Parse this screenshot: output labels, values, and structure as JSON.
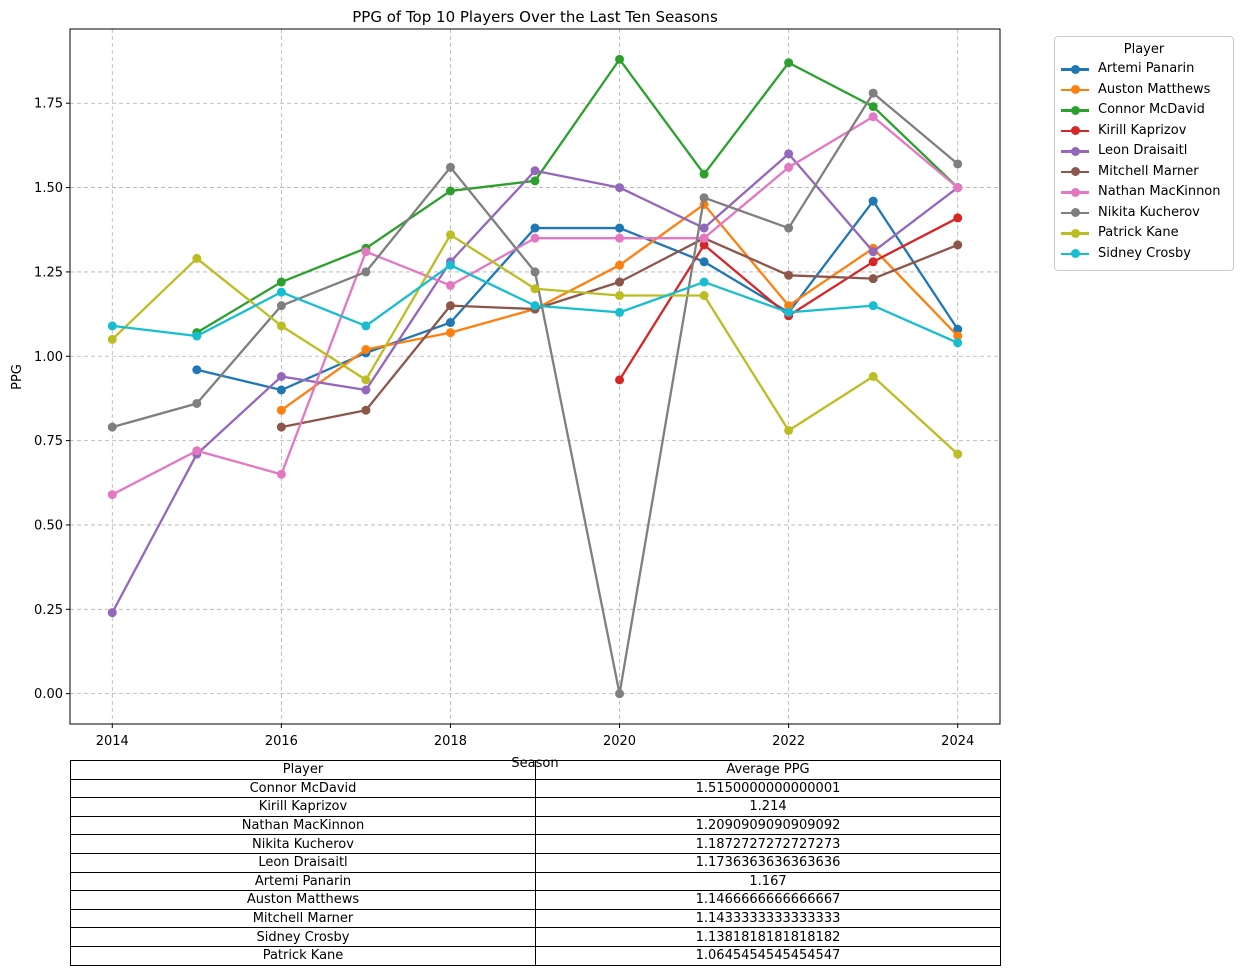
{
  "chart_data": {
    "type": "line",
    "title": "PPG of Top 10 Players Over the Last Ten Seasons",
    "xlabel": "Season",
    "ylabel": "PPG",
    "xlim": [
      2013.5,
      2024.5
    ],
    "ylim": [
      -0.09,
      1.97
    ],
    "xticks": [
      2014,
      2016,
      2018,
      2020,
      2022,
      2024
    ],
    "yticks": [
      0.0,
      0.25,
      0.5,
      0.75,
      1.0,
      1.25,
      1.5,
      1.75
    ],
    "ytick_labels": [
      "0.00",
      "0.25",
      "0.50",
      "0.75",
      "1.00",
      "1.25",
      "1.50",
      "1.75"
    ],
    "grid": true,
    "legend_title": "Player",
    "legend_position": "outside top-right",
    "series": [
      {
        "name": "Artemi Panarin",
        "color": "#1f77b4",
        "points": [
          [
            2015,
            0.96
          ],
          [
            2016,
            0.9
          ],
          [
            2017,
            1.01
          ],
          [
            2018,
            1.1
          ],
          [
            2019,
            1.38
          ],
          [
            2020,
            1.38
          ],
          [
            2021,
            1.28
          ],
          [
            2022,
            1.13
          ],
          [
            2023,
            1.46
          ],
          [
            2024,
            1.08
          ]
        ]
      },
      {
        "name": "Auston Matthews",
        "color": "#ff7f0e",
        "points": [
          [
            2016,
            0.84
          ],
          [
            2017,
            1.02
          ],
          [
            2018,
            1.07
          ],
          [
            2019,
            1.14
          ],
          [
            2020,
            1.27
          ],
          [
            2021,
            1.45
          ],
          [
            2022,
            1.15
          ],
          [
            2023,
            1.32
          ],
          [
            2024,
            1.06
          ]
        ]
      },
      {
        "name": "Connor McDavid",
        "color": "#2ca02c",
        "points": [
          [
            2015,
            1.07
          ],
          [
            2016,
            1.22
          ],
          [
            2017,
            1.32
          ],
          [
            2018,
            1.49
          ],
          [
            2019,
            1.52
          ],
          [
            2020,
            1.88
          ],
          [
            2021,
            1.54
          ],
          [
            2022,
            1.87
          ],
          [
            2023,
            1.74
          ],
          [
            2024,
            1.5
          ]
        ]
      },
      {
        "name": "Kirill Kaprizov",
        "color": "#d62728",
        "points": [
          [
            2020,
            0.93
          ],
          [
            2021,
            1.33
          ],
          [
            2022,
            1.12
          ],
          [
            2023,
            1.28
          ],
          [
            2024,
            1.41
          ]
        ]
      },
      {
        "name": "Leon Draisaitl",
        "color": "#9467bd",
        "points": [
          [
            2014,
            0.24
          ],
          [
            2015,
            0.71
          ],
          [
            2016,
            0.94
          ],
          [
            2017,
            0.9
          ],
          [
            2018,
            1.28
          ],
          [
            2019,
            1.55
          ],
          [
            2020,
            1.5
          ],
          [
            2021,
            1.38
          ],
          [
            2022,
            1.6
          ],
          [
            2023,
            1.31
          ],
          [
            2024,
            1.5
          ]
        ]
      },
      {
        "name": "Mitchell Marner",
        "color": "#8c564b",
        "points": [
          [
            2016,
            0.79
          ],
          [
            2017,
            0.84
          ],
          [
            2018,
            1.15
          ],
          [
            2019,
            1.14
          ],
          [
            2020,
            1.22
          ],
          [
            2021,
            1.35
          ],
          [
            2022,
            1.24
          ],
          [
            2023,
            1.23
          ],
          [
            2024,
            1.33
          ]
        ]
      },
      {
        "name": "Nathan MacKinnon",
        "color": "#e377c2",
        "points": [
          [
            2014,
            0.59
          ],
          [
            2015,
            0.72
          ],
          [
            2016,
            0.65
          ],
          [
            2017,
            1.31
          ],
          [
            2018,
            1.21
          ],
          [
            2019,
            1.35
          ],
          [
            2020,
            1.35
          ],
          [
            2021,
            1.35
          ],
          [
            2022,
            1.56
          ],
          [
            2023,
            1.71
          ],
          [
            2024,
            1.5
          ]
        ]
      },
      {
        "name": "Nikita Kucherov",
        "color": "#7f7f7f",
        "points": [
          [
            2014,
            0.79
          ],
          [
            2015,
            0.86
          ],
          [
            2016,
            1.15
          ],
          [
            2017,
            1.25
          ],
          [
            2018,
            1.56
          ],
          [
            2019,
            1.25
          ],
          [
            2020,
            0.0
          ],
          [
            2021,
            1.47
          ],
          [
            2022,
            1.38
          ],
          [
            2023,
            1.78
          ],
          [
            2024,
            1.57
          ]
        ]
      },
      {
        "name": "Patrick Kane",
        "color": "#bcbd22",
        "points": [
          [
            2014,
            1.05
          ],
          [
            2015,
            1.29
          ],
          [
            2016,
            1.09
          ],
          [
            2017,
            0.93
          ],
          [
            2018,
            1.36
          ],
          [
            2019,
            1.2
          ],
          [
            2020,
            1.18
          ],
          [
            2021,
            1.18
          ],
          [
            2022,
            0.78
          ],
          [
            2023,
            0.94
          ],
          [
            2024,
            0.71
          ]
        ]
      },
      {
        "name": "Sidney Crosby",
        "color": "#17becf",
        "points": [
          [
            2014,
            1.09
          ],
          [
            2015,
            1.06
          ],
          [
            2016,
            1.19
          ],
          [
            2017,
            1.09
          ],
          [
            2018,
            1.27
          ],
          [
            2019,
            1.15
          ],
          [
            2020,
            1.13
          ],
          [
            2021,
            1.22
          ],
          [
            2022,
            1.13
          ],
          [
            2023,
            1.15
          ],
          [
            2024,
            1.04
          ]
        ]
      }
    ]
  },
  "table": {
    "headers": [
      "Player",
      "Average PPG"
    ],
    "rows": [
      [
        "Connor McDavid",
        "1.5150000000000001"
      ],
      [
        "Kirill Kaprizov",
        "1.214"
      ],
      [
        "Nathan MacKinnon",
        "1.2090909090909092"
      ],
      [
        "Nikita Kucherov",
        "1.1872727272727273"
      ],
      [
        "Leon Draisaitl",
        "1.1736363636363636"
      ],
      [
        "Artemi Panarin",
        "1.167"
      ],
      [
        "Auston Matthews",
        "1.1466666666666667"
      ],
      [
        "Mitchell Marner",
        "1.1433333333333333"
      ],
      [
        "Sidney Crosby",
        "1.1381818181818182"
      ],
      [
        "Patrick Kane",
        "1.0645454545454547"
      ]
    ]
  }
}
